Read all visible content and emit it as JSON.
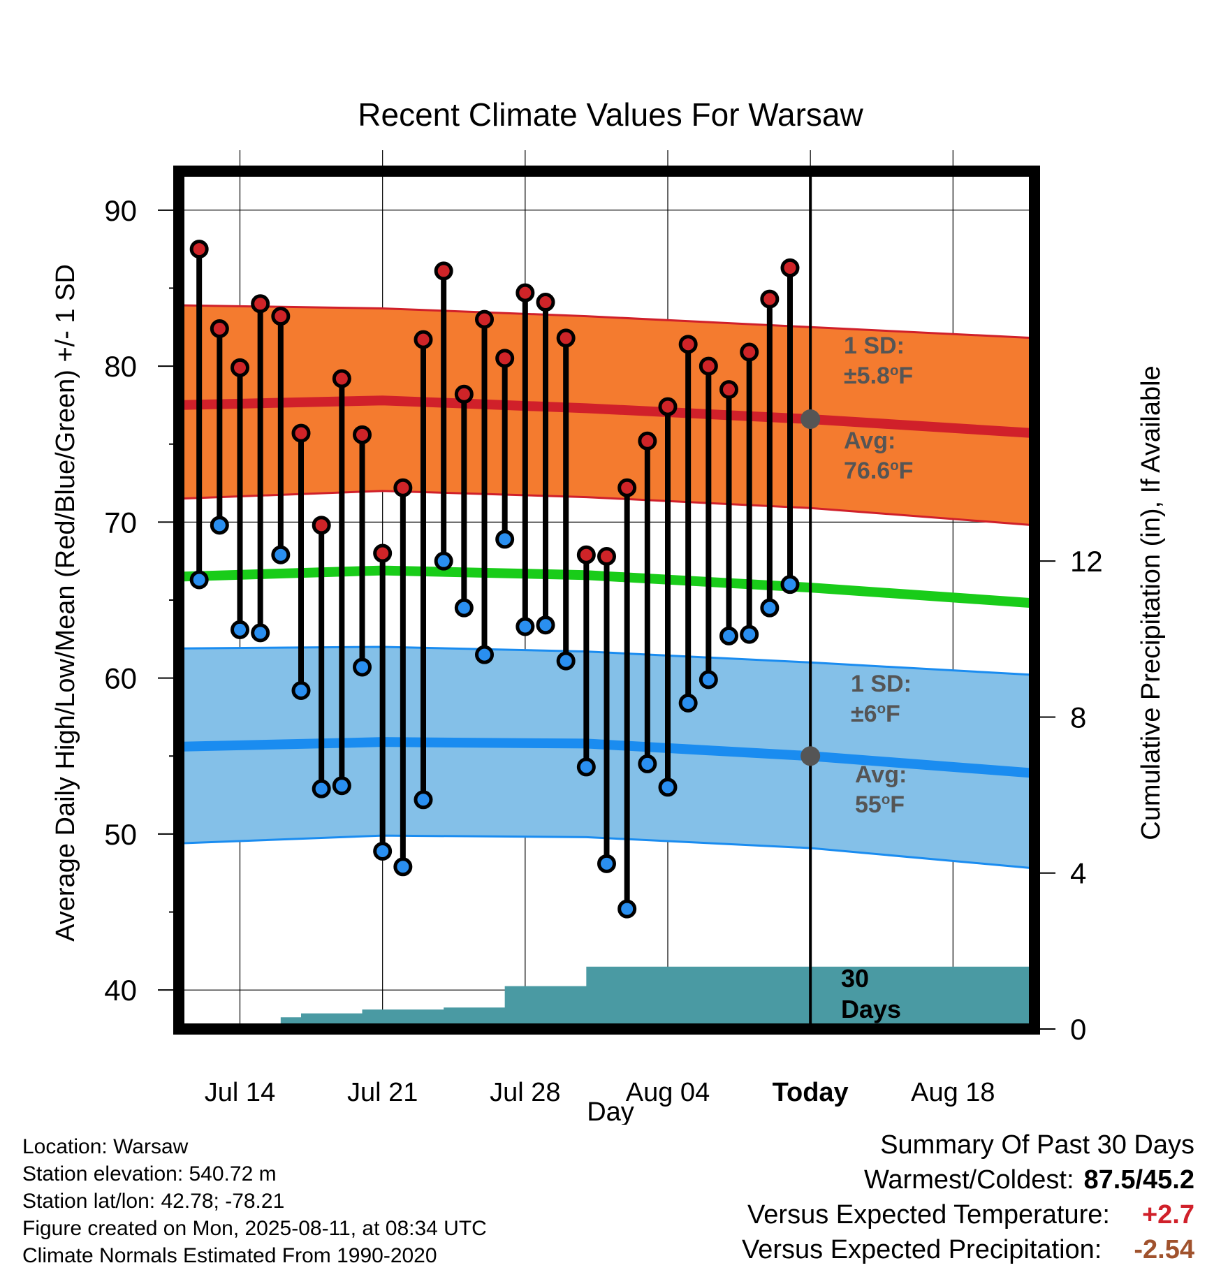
{
  "chart_data": {
    "type": "line",
    "title": "Recent Climate Values For Warsaw",
    "xlabel": "Day",
    "ylabel": "Average Daily High/Low/Mean (Red/Blue/Green) +/- 1 SD",
    "y2label": "Cumulative Precipitation (in), If Available",
    "ylim": [
      37.5,
      92.5
    ],
    "y_ticks": [
      40,
      50,
      60,
      70,
      80,
      90
    ],
    "y2lim": [
      0,
      22
    ],
    "y2_ticks": [
      0,
      4,
      8,
      12
    ],
    "xlim": [
      "2025-07-11",
      "2025-08-22"
    ],
    "x_ticks": [
      {
        "date": "2025-07-14",
        "label": "Jul 14"
      },
      {
        "date": "2025-07-21",
        "label": "Jul 21"
      },
      {
        "date": "2025-07-28",
        "label": "Jul 28"
      },
      {
        "date": "2025-08-04",
        "label": "Aug 04"
      },
      {
        "date": "2025-08-11",
        "label": "Today"
      },
      {
        "date": "2025-08-18",
        "label": "Aug 18"
      }
    ],
    "grid": true,
    "today": "2025-08-11",
    "daily_observed": {
      "dates": [
        "2025-07-12",
        "2025-07-13",
        "2025-07-14",
        "2025-07-15",
        "2025-07-16",
        "2025-07-17",
        "2025-07-18",
        "2025-07-19",
        "2025-07-20",
        "2025-07-21",
        "2025-07-22",
        "2025-07-23",
        "2025-07-24",
        "2025-07-25",
        "2025-07-26",
        "2025-07-27",
        "2025-07-28",
        "2025-07-29",
        "2025-07-30",
        "2025-07-31",
        "2025-08-01",
        "2025-08-02",
        "2025-08-03",
        "2025-08-04",
        "2025-08-05",
        "2025-08-06",
        "2025-08-07",
        "2025-08-08",
        "2025-08-09",
        "2025-08-10"
      ],
      "high": [
        87.5,
        82.4,
        79.9,
        84.0,
        83.2,
        75.7,
        69.8,
        79.2,
        75.6,
        68.0,
        72.2,
        81.7,
        86.1,
        78.2,
        83.0,
        80.5,
        84.7,
        84.1,
        81.8,
        67.9,
        67.8,
        72.2,
        75.2,
        77.4,
        81.4,
        80.0,
        78.5,
        80.9,
        84.3,
        86.3
      ],
      "low": [
        66.3,
        69.8,
        63.1,
        62.9,
        67.9,
        59.2,
        52.9,
        53.1,
        60.7,
        48.9,
        47.9,
        52.2,
        67.5,
        64.5,
        61.5,
        68.9,
        63.3,
        63.4,
        61.1,
        54.3,
        48.1,
        45.2,
        54.5,
        53.0,
        58.4,
        59.9,
        62.7,
        62.8,
        64.5,
        66.0
      ]
    },
    "normals": {
      "dates": [
        "2025-07-11",
        "2025-07-21",
        "2025-07-31",
        "2025-08-11",
        "2025-08-22"
      ],
      "avg_high": [
        77.5,
        77.8,
        77.3,
        76.6,
        75.7
      ],
      "high_plus_sd": [
        83.9,
        83.7,
        83.2,
        82.5,
        81.8
      ],
      "high_minus_sd": [
        71.5,
        72.0,
        71.6,
        70.9,
        69.8
      ],
      "avg_mean": [
        66.5,
        66.9,
        66.6,
        65.8,
        64.8
      ],
      "avg_low": [
        55.6,
        55.9,
        55.8,
        55.0,
        53.9
      ],
      "low_plus_sd": [
        61.9,
        62.0,
        61.7,
        61.0,
        60.2
      ],
      "low_minus_sd": [
        49.4,
        49.9,
        49.8,
        49.1,
        47.8
      ]
    },
    "precip_cumulative": {
      "dates": [
        "2025-07-11",
        "2025-07-15",
        "2025-07-16",
        "2025-07-17",
        "2025-07-18",
        "2025-07-19",
        "2025-07-20",
        "2025-07-21",
        "2025-07-22",
        "2025-07-23",
        "2025-07-24",
        "2025-07-25",
        "2025-07-26",
        "2025-07-27",
        "2025-07-28",
        "2025-07-29",
        "2025-07-30",
        "2025-07-31",
        "2025-08-01",
        "2025-08-22"
      ],
      "values": [
        0,
        0,
        0.3,
        0.4,
        0.4,
        0.4,
        0.5,
        0.5,
        0.5,
        0.5,
        0.55,
        0.55,
        0.55,
        1.1,
        1.1,
        1.1,
        1.1,
        1.6,
        1.6,
        1.6
      ]
    },
    "annotations": {
      "high_sd_line1": "1 SD:",
      "high_sd_line2": "±5.8°F",
      "high_avg_line1": "Avg:",
      "high_avg_line2": "76.6°F",
      "low_sd_line1": "1 SD:",
      "low_sd_line2": "±6°F",
      "low_avg_line1": "Avg:",
      "low_avg_line2": "55°F",
      "days_line1": "30",
      "days_line2": "Days"
    },
    "colors": {
      "high_band": "#f47b2f",
      "high_line": "#d0202a",
      "mean_line": "#19cc19",
      "low_band": "#84c0e8",
      "low_line": "#1a8cf0",
      "precip": "#4a9aa3",
      "high_marker": "#cf2428",
      "low_marker": "#2a8ff0",
      "annotation": "#555555"
    }
  },
  "footer": {
    "location": "Location: Warsaw",
    "elevation": "Station elevation: 540.72 m",
    "latlon": "Station lat/lon: 42.78; -78.21",
    "created": "Figure created on Mon, 2025-08-11, at 08:34 UTC",
    "normals": "Climate Normals Estimated From 1990-2020"
  },
  "summary": {
    "heading": "Summary Of Past 30 Days",
    "warmest_label": "Warmest/Coldest:",
    "warmest_value": "87.5/45.2",
    "temp_label": "Versus Expected Temperature:",
    "temp_value": "+2.7",
    "temp_color": "#d0202a",
    "precip_label": "Versus Expected Precipitation:",
    "precip_value": "-2.54",
    "precip_color": "#a0522d"
  }
}
